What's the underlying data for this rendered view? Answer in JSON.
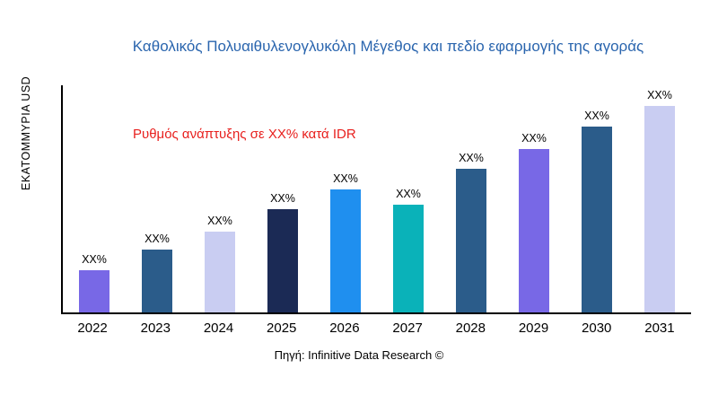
{
  "title": "Καθολικός Πολυαιθυλενογλυκόλη Μέγεθος και πεδίο εφαρμογής της αγοράς",
  "annotation": "Ρυθμός ανάπτυξης σε XX% κατά IDR",
  "source": "Πηγή: Infinitive Data Research ©",
  "ylabel": "ΕΚΑΤΟΜΜΥΡΙΑ USD",
  "colors": {
    "title_blue": "#2a65ae",
    "annotation_red": "#e8201e",
    "axis_black": "#000000"
  },
  "chart_data": {
    "type": "bar",
    "title": "Καθολικός Πολυαιθυλενογλυκόλη Μέγεθος και πεδίο εφαρμογής της αγοράς",
    "xlabel": "",
    "ylabel": "ΕΚΑΤΟΜΜΥΡΙΑ USD",
    "categories": [
      "2022",
      "2023",
      "2024",
      "2025",
      "2026",
      "2027",
      "2028",
      "2029",
      "2030",
      "2031"
    ],
    "values": [
      19,
      28,
      36,
      46,
      55,
      48,
      64,
      73,
      83,
      92
    ],
    "bar_labels": [
      "XX%",
      "XX%",
      "XX%",
      "XX%",
      "XX%",
      "XX%",
      "XX%",
      "XX%",
      "XX%",
      "XX%"
    ],
    "bar_colors": [
      "#7868e6",
      "#2b5c8a",
      "#c9cdf2",
      "#1b2a55",
      "#1f8fef",
      "#0ab2b9",
      "#2b5c8a",
      "#7868e6",
      "#2b5c8a",
      "#c9cdf2"
    ],
    "ylim": [
      0,
      100
    ],
    "grid": false,
    "legend": null,
    "annotations": [
      "Ρυθμός ανάπτυξης σε XX% κατά IDR"
    ],
    "source": "Πηγή: Infinitive Data Research ©",
    "note": "values are relative bar heights estimated from pixels; data labels show XX% placeholders"
  }
}
